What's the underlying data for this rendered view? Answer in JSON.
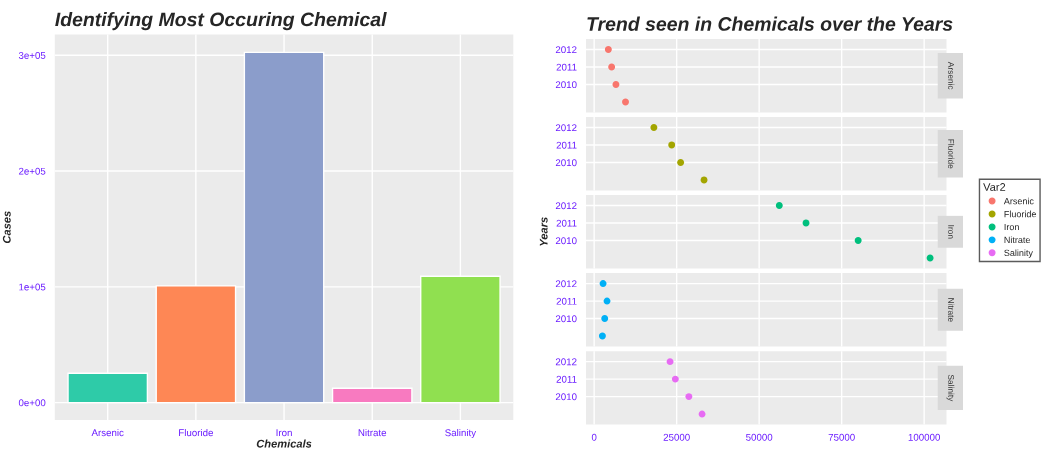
{
  "chart_data": [
    {
      "type": "bar",
      "title": "Identifying Most Occuring Chemical",
      "xlabel": "Chemicals",
      "ylabel": "Cases",
      "categories": [
        "Arsenic",
        "Fluoride",
        "Iron",
        "Nitrate",
        "Salinity"
      ],
      "values": [
        25400,
        100800,
        302500,
        12400,
        109100
      ],
      "colors": [
        "#2ecba8",
        "#fe8755",
        "#8b9dcb",
        "#f87ac0",
        "#90e050"
      ],
      "ylim": [
        -15000,
        318000
      ],
      "yticks": [
        {
          "value": 0,
          "label": "0e+00"
        },
        {
          "value": 100000,
          "label": "1e+05"
        },
        {
          "value": 200000,
          "label": "2e+05"
        },
        {
          "value": 300000,
          "label": "3e+05"
        }
      ],
      "grid": true
    },
    {
      "type": "scatter",
      "orientation": "horizontal",
      "title": "Trend seen in Chemicals over the Years",
      "annotations": [
        "Arsenic"
      ],
      "categories": [
        "2012",
        "2011",
        "2010",
        null
      ],
      "series": [
        {
          "name": "Arsenic",
          "color": "#f8766d",
          "values": [
            4300,
            5300,
            6600,
            9500
          ]
        }
      ],
      "xlim": [
        -2465,
        106765
      ],
      "xticks": [
        0,
        25000,
        50000,
        75000,
        100000
      ],
      "tick_labels": "y",
      "marker": "circle",
      "grid": true
    },
    {
      "type": "scatter",
      "orientation": "horizontal",
      "annotations": [
        "Fluoride"
      ],
      "categories": [
        "2012",
        "2011",
        "2010",
        null
      ],
      "series": [
        {
          "name": "Fluoride",
          "color": "#a3a500",
          "values": [
            18100,
            23500,
            26200,
            33300
          ]
        }
      ],
      "xlim": [
        -2465,
        106765
      ],
      "xticks": [
        0,
        25000,
        50000,
        75000,
        100000
      ],
      "tick_labels": "y",
      "marker": "circle",
      "grid": true
    },
    {
      "type": "scatter",
      "orientation": "horizontal",
      "ylabel": "Years",
      "legend_title": "Var2",
      "legend": "right",
      "annotations": [
        "Iron"
      ],
      "categories": [
        "2012",
        "2011",
        "2010",
        null
      ],
      "series": [
        {
          "name": "Iron",
          "color": "#00bf7d",
          "values": [
            56100,
            64200,
            80000,
            101800
          ]
        }
      ],
      "xlim": [
        -2465,
        106765
      ],
      "xticks": [
        0,
        25000,
        50000,
        75000,
        100000
      ],
      "tick_labels": "y",
      "marker": "circle",
      "grid": true
    },
    {
      "type": "scatter",
      "orientation": "horizontal",
      "annotations": [
        "Nitrate"
      ],
      "categories": [
        "2012",
        "2011",
        "2010",
        null
      ],
      "series": [
        {
          "name": "Nitrate",
          "color": "#00b0f6",
          "values": [
            2700,
            3900,
            3200,
            2500
          ]
        }
      ],
      "xlim": [
        -2465,
        106765
      ],
      "xticks": [
        0,
        25000,
        50000,
        75000,
        100000
      ],
      "tick_labels": "y",
      "marker": "circle",
      "grid": true
    },
    {
      "type": "scatter",
      "orientation": "horizontal",
      "annotations": [
        "Salinity"
      ],
      "categories": [
        "2012",
        "2011",
        "2010",
        null
      ],
      "series": [
        {
          "name": "Salinity",
          "color": "#e76bf3",
          "values": [
            23000,
            24600,
            28700,
            32700
          ]
        }
      ],
      "xlim": [
        -2465,
        106765
      ],
      "xticks": [
        0,
        25000,
        50000,
        75000,
        100000
      ],
      "marker": "circle",
      "grid": true
    }
  ]
}
